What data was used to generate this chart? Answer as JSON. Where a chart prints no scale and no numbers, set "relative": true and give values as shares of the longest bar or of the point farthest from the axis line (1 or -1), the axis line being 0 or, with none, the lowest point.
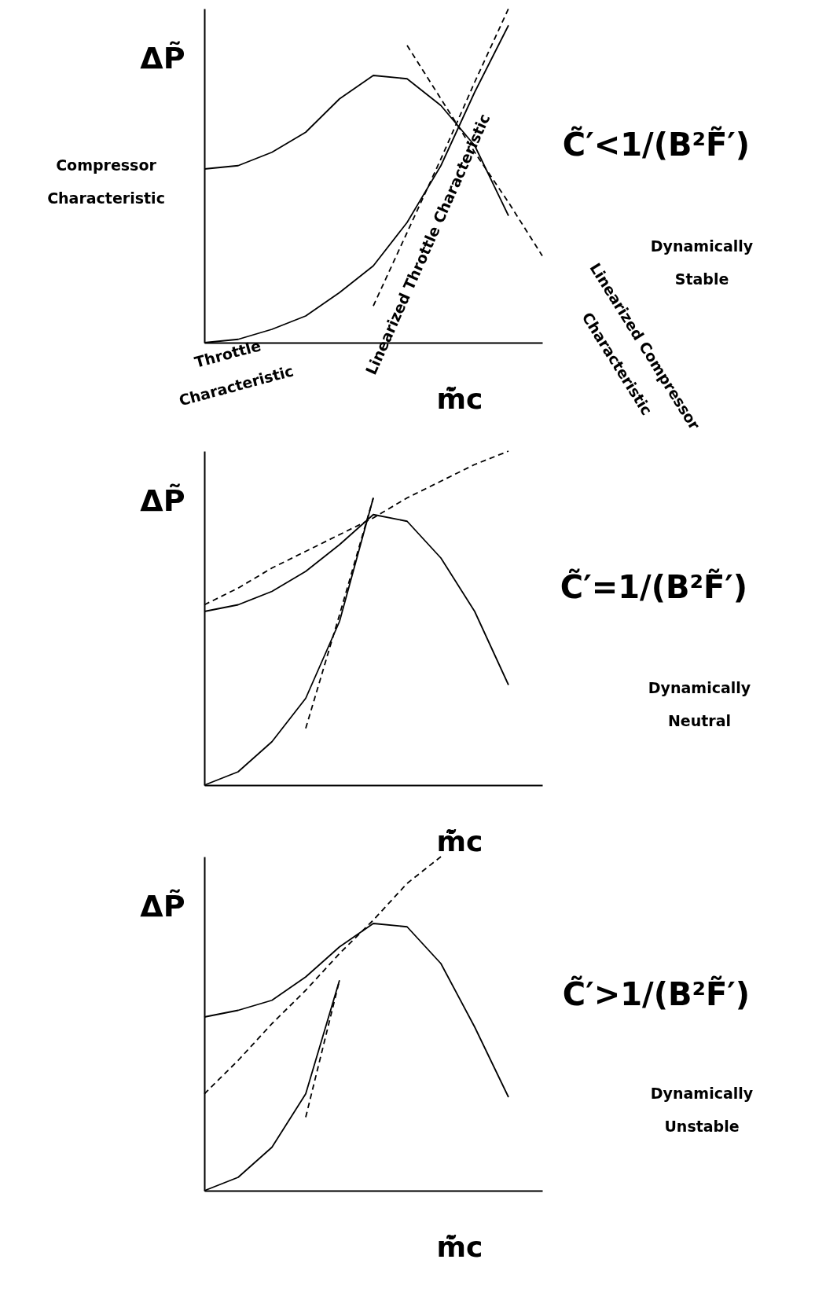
{
  "chart_data": [
    {
      "type": "line",
      "relative": true,
      "xlabel": "m̃̇c",
      "ylabel": "ΔP̃",
      "categories": [
        null,
        null,
        null,
        null,
        null,
        null,
        null,
        null,
        null,
        null,
        null
      ],
      "series": [
        {
          "color": "#000000",
          "line_style": "solid",
          "values": [
            0.52,
            0.53,
            0.57,
            0.63,
            0.73,
            0.8,
            0.79,
            0.71,
            0.59,
            0.38,
            null
          ]
        },
        {
          "color": "#000000",
          "line_style": "solid",
          "values": [
            0,
            0.01,
            0.04,
            0.08,
            0.15,
            0.23,
            0.36,
            0.53,
            0.75,
            0.95,
            null
          ]
        },
        {
          "color": "#000000",
          "line_style": "dashed",
          "values": [
            null,
            null,
            null,
            null,
            null,
            0.11,
            0.33,
            0.55,
            0.78,
            1.0,
            null
          ]
        },
        {
          "color": "#000000",
          "line_style": "dashed",
          "values": [
            null,
            null,
            null,
            null,
            null,
            null,
            0.89,
            0.73,
            0.57,
            0.42,
            0.26
          ]
        }
      ],
      "annotations": [
        "Compressor\nCharacteristic",
        "Throttle\nCharacteristic",
        "Linearized Throttle Characteristic",
        "Linearized Compressor\nCharacteristic",
        "C̃′<1/(B²F̃′)",
        "Dynamically\nStable"
      ]
    },
    {
      "type": "line",
      "relative": true,
      "xlabel": "m̃̇c",
      "ylabel": "ΔP̃",
      "categories": [
        null,
        null,
        null,
        null,
        null,
        null,
        null,
        null,
        null,
        null,
        null
      ],
      "series": [
        {
          "color": "#000000",
          "line_style": "solid",
          "values": [
            0.52,
            0.54,
            0.58,
            0.64,
            0.72,
            0.81,
            0.79,
            0.68,
            0.52,
            0.3,
            null
          ]
        },
        {
          "color": "#000000",
          "line_style": "solid",
          "values": [
            0,
            0.04,
            0.13,
            0.26,
            0.49,
            0.86,
            null,
            null,
            null,
            null,
            null
          ]
        },
        {
          "color": "#000000",
          "line_style": "dashed",
          "values": [
            null,
            null,
            null,
            0.17,
            0.51,
            0.86,
            null,
            null,
            null,
            null,
            null
          ]
        },
        {
          "color": "#000000",
          "line_style": "dashed",
          "values": [
            0.54,
            0.59,
            0.65,
            0.7,
            0.75,
            0.8,
            0.86,
            0.91,
            0.96,
            1.0,
            null
          ]
        }
      ],
      "annotations": [
        "C̃′=1/(B²F̃′)",
        "Dynamically\nNeutral"
      ]
    },
    {
      "type": "line",
      "relative": true,
      "xlabel": "m̃̇c",
      "ylabel": "ΔP̃",
      "categories": [
        null,
        null,
        null,
        null,
        null,
        null,
        null,
        null,
        null,
        null,
        null
      ],
      "series": [
        {
          "color": "#000000",
          "line_style": "solid",
          "values": [
            0.52,
            0.54,
            0.57,
            0.64,
            0.73,
            0.8,
            0.79,
            0.68,
            0.49,
            0.28,
            null
          ]
        },
        {
          "color": "#000000",
          "line_style": "solid",
          "values": [
            0,
            0.04,
            0.13,
            0.29,
            0.63,
            null,
            null,
            null,
            null,
            null,
            null
          ]
        },
        {
          "color": "#000000",
          "line_style": "dashed",
          "values": [
            null,
            null,
            null,
            0.22,
            0.63,
            null,
            null,
            null,
            null,
            null,
            null
          ]
        },
        {
          "color": "#000000",
          "line_style": "dashed",
          "values": [
            0.29,
            0.39,
            0.5,
            0.6,
            0.71,
            0.81,
            0.92,
            1.0,
            null,
            null,
            null
          ]
        }
      ],
      "annotations": [
        "C̃′>1/(B²F̃′)",
        "Dynamically\nUnstable"
      ]
    }
  ]
}
